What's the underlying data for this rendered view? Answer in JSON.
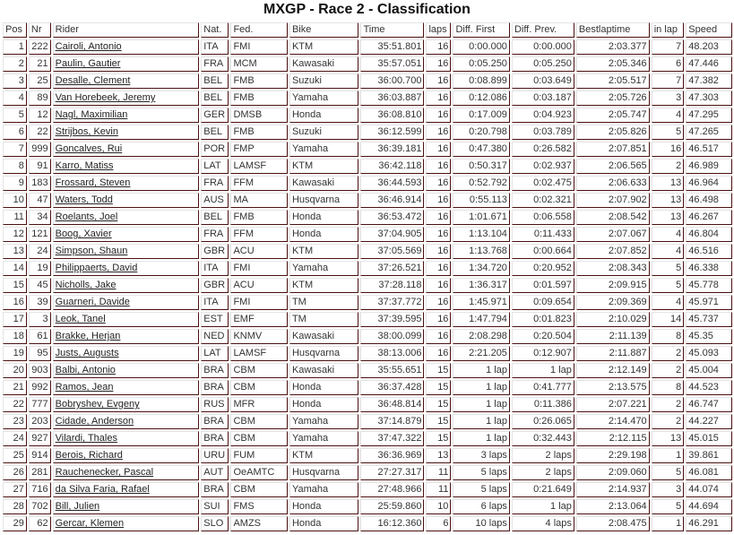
{
  "title": "MXGP - Race 2 - Classification",
  "columns": [
    "Pos",
    "Nr",
    "Rider",
    "Nat.",
    "Fed.",
    "Bike",
    "Time",
    "laps",
    "Diff. First",
    "Diff. Prev.",
    "Bestlaptime",
    "in lap",
    "Speed"
  ],
  "rows": [
    [
      "1",
      "222",
      "Cairoli, Antonio",
      "ITA",
      "FMI",
      "KTM",
      "35:51.801",
      "16",
      "0:00.000",
      "0:00.000",
      "2:03.377",
      "7",
      "48.203"
    ],
    [
      "2",
      "21",
      "Paulin, Gautier",
      "FRA",
      "MCM",
      "Kawasaki",
      "35:57.051",
      "16",
      "0:05.250",
      "0:05.250",
      "2:05.346",
      "6",
      "47.446"
    ],
    [
      "3",
      "25",
      "Desalle, Clement",
      "BEL",
      "FMB",
      "Suzuki",
      "36:00.700",
      "16",
      "0:08.899",
      "0:03.649",
      "2:05.517",
      "7",
      "47.382"
    ],
    [
      "4",
      "89",
      "Van Horebeek, Jeremy",
      "BEL",
      "FMB",
      "Yamaha",
      "36:03.887",
      "16",
      "0:12.086",
      "0:03.187",
      "2:05.726",
      "3",
      "47.303"
    ],
    [
      "5",
      "12",
      "Nagl, Maximilian",
      "GER",
      "DMSB",
      "Honda",
      "36:08.810",
      "16",
      "0:17.009",
      "0:04.923",
      "2:05.747",
      "4",
      "47.295"
    ],
    [
      "6",
      "22",
      "Strijbos, Kevin",
      "BEL",
      "FMB",
      "Suzuki",
      "36:12.599",
      "16",
      "0:20.798",
      "0:03.789",
      "2:05.826",
      "5",
      "47.265"
    ],
    [
      "7",
      "999",
      "Goncalves, Rui",
      "POR",
      "FMP",
      "Yamaha",
      "36:39.181",
      "16",
      "0:47.380",
      "0:26.582",
      "2:07.851",
      "16",
      "46.517"
    ],
    [
      "8",
      "91",
      "Karro, Matiss",
      "LAT",
      "LAMSF",
      "KTM",
      "36:42.118",
      "16",
      "0:50.317",
      "0:02.937",
      "2:06.565",
      "2",
      "46.989"
    ],
    [
      "9",
      "183",
      "Frossard, Steven",
      "FRA",
      "FFM",
      "Kawasaki",
      "36:44.593",
      "16",
      "0:52.792",
      "0:02.475",
      "2:06.633",
      "13",
      "46.964"
    ],
    [
      "10",
      "47",
      "Waters, Todd",
      "AUS",
      "MA",
      "Husqvarna",
      "36:46.914",
      "16",
      "0:55.113",
      "0:02.321",
      "2:07.902",
      "13",
      "46.498"
    ],
    [
      "11",
      "34",
      "Roelants, Joel",
      "BEL",
      "FMB",
      "Honda",
      "36:53.472",
      "16",
      "1:01.671",
      "0:06.558",
      "2:08.542",
      "13",
      "46.267"
    ],
    [
      "12",
      "121",
      "Boog, Xavier",
      "FRA",
      "FFM",
      "Honda",
      "37:04.905",
      "16",
      "1:13.104",
      "0:11.433",
      "2:07.067",
      "4",
      "46.804"
    ],
    [
      "13",
      "24",
      "Simpson, Shaun",
      "GBR",
      "ACU",
      "KTM",
      "37:05.569",
      "16",
      "1:13.768",
      "0:00.664",
      "2:07.852",
      "4",
      "46.516"
    ],
    [
      "14",
      "19",
      "Philippaerts, David",
      "ITA",
      "FMI",
      "Yamaha",
      "37:26.521",
      "16",
      "1:34.720",
      "0:20.952",
      "2:08.343",
      "5",
      "46.338"
    ],
    [
      "15",
      "45",
      "Nicholls, Jake",
      "GBR",
      "ACU",
      "KTM",
      "37:28.118",
      "16",
      "1:36.317",
      "0:01.597",
      "2:09.915",
      "5",
      "45.778"
    ],
    [
      "16",
      "39",
      "Guarneri, Davide",
      "ITA",
      "FMI",
      "TM",
      "37:37.772",
      "16",
      "1:45.971",
      "0:09.654",
      "2:09.369",
      "4",
      "45.971"
    ],
    [
      "17",
      "3",
      "Leok, Tanel",
      "EST",
      "EMF",
      "TM",
      "37:39.595",
      "16",
      "1:47.794",
      "0:01.823",
      "2:10.029",
      "14",
      "45.737"
    ],
    [
      "18",
      "61",
      "Brakke, Herjan",
      "NED",
      "KNMV",
      "Kawasaki",
      "38:00.099",
      "16",
      "2:08.298",
      "0:20.504",
      "2:11.139",
      "8",
      "45.35"
    ],
    [
      "19",
      "95",
      "Justs, Augusts",
      "LAT",
      "LAMSF",
      "Husqvarna",
      "38:13.006",
      "16",
      "2:21.205",
      "0:12.907",
      "2:11.887",
      "2",
      "45.093"
    ],
    [
      "20",
      "903",
      "Balbi, Antonio",
      "BRA",
      "CBM",
      "Kawasaki",
      "35:55.651",
      "15",
      "1 lap",
      "1 lap",
      "2:12.149",
      "2",
      "45.004"
    ],
    [
      "21",
      "992",
      "Ramos, Jean",
      "BRA",
      "CBM",
      "Honda",
      "36:37.428",
      "15",
      "1 lap",
      "0:41.777",
      "2:13.575",
      "8",
      "44.523"
    ],
    [
      "22",
      "777",
      "Bobryshev, Evgeny",
      "RUS",
      "MFR",
      "Honda",
      "36:48.814",
      "15",
      "1 lap",
      "0:11.386",
      "2:07.221",
      "2",
      "46.747"
    ],
    [
      "23",
      "203",
      "Cidade, Anderson",
      "BRA",
      "CBM",
      "Yamaha",
      "37:14.879",
      "15",
      "1 lap",
      "0:26.065",
      "2:14.470",
      "2",
      "44.227"
    ],
    [
      "24",
      "927",
      "Vilardi, Thales",
      "BRA",
      "CBM",
      "Yamaha",
      "37:47.322",
      "15",
      "1 lap",
      "0:32.443",
      "2:12.115",
      "13",
      "45.015"
    ],
    [
      "25",
      "914",
      "Berois, Richard",
      "URU",
      "FUM",
      "KTM",
      "36:36.969",
      "13",
      "3 laps",
      "2 laps",
      "2:29.198",
      "1",
      "39.861"
    ],
    [
      "26",
      "281",
      "Rauchenecker, Pascal",
      "AUT",
      "OeAMTC",
      "Husqvarna",
      "27:27.317",
      "11",
      "5 laps",
      "2 laps",
      "2:09.060",
      "5",
      "46.081"
    ],
    [
      "27",
      "716",
      "da Silva Faria, Rafael",
      "BRA",
      "CBM",
      "Yamaha",
      "27:48.966",
      "11",
      "5 laps",
      "0:21.649",
      "2:14.937",
      "3",
      "44.074"
    ],
    [
      "28",
      "702",
      "Bill, Julien",
      "SUI",
      "FMS",
      "Honda",
      "25:59.860",
      "10",
      "6 laps",
      "1 lap",
      "2:13.064",
      "5",
      "44.694"
    ],
    [
      "29",
      "62",
      "Gercar, Klemen",
      "SLO",
      "AMZS",
      "Honda",
      "16:12.360",
      "6",
      "10 laps",
      "4 laps",
      "2:08.475",
      "1",
      "46.291"
    ]
  ]
}
